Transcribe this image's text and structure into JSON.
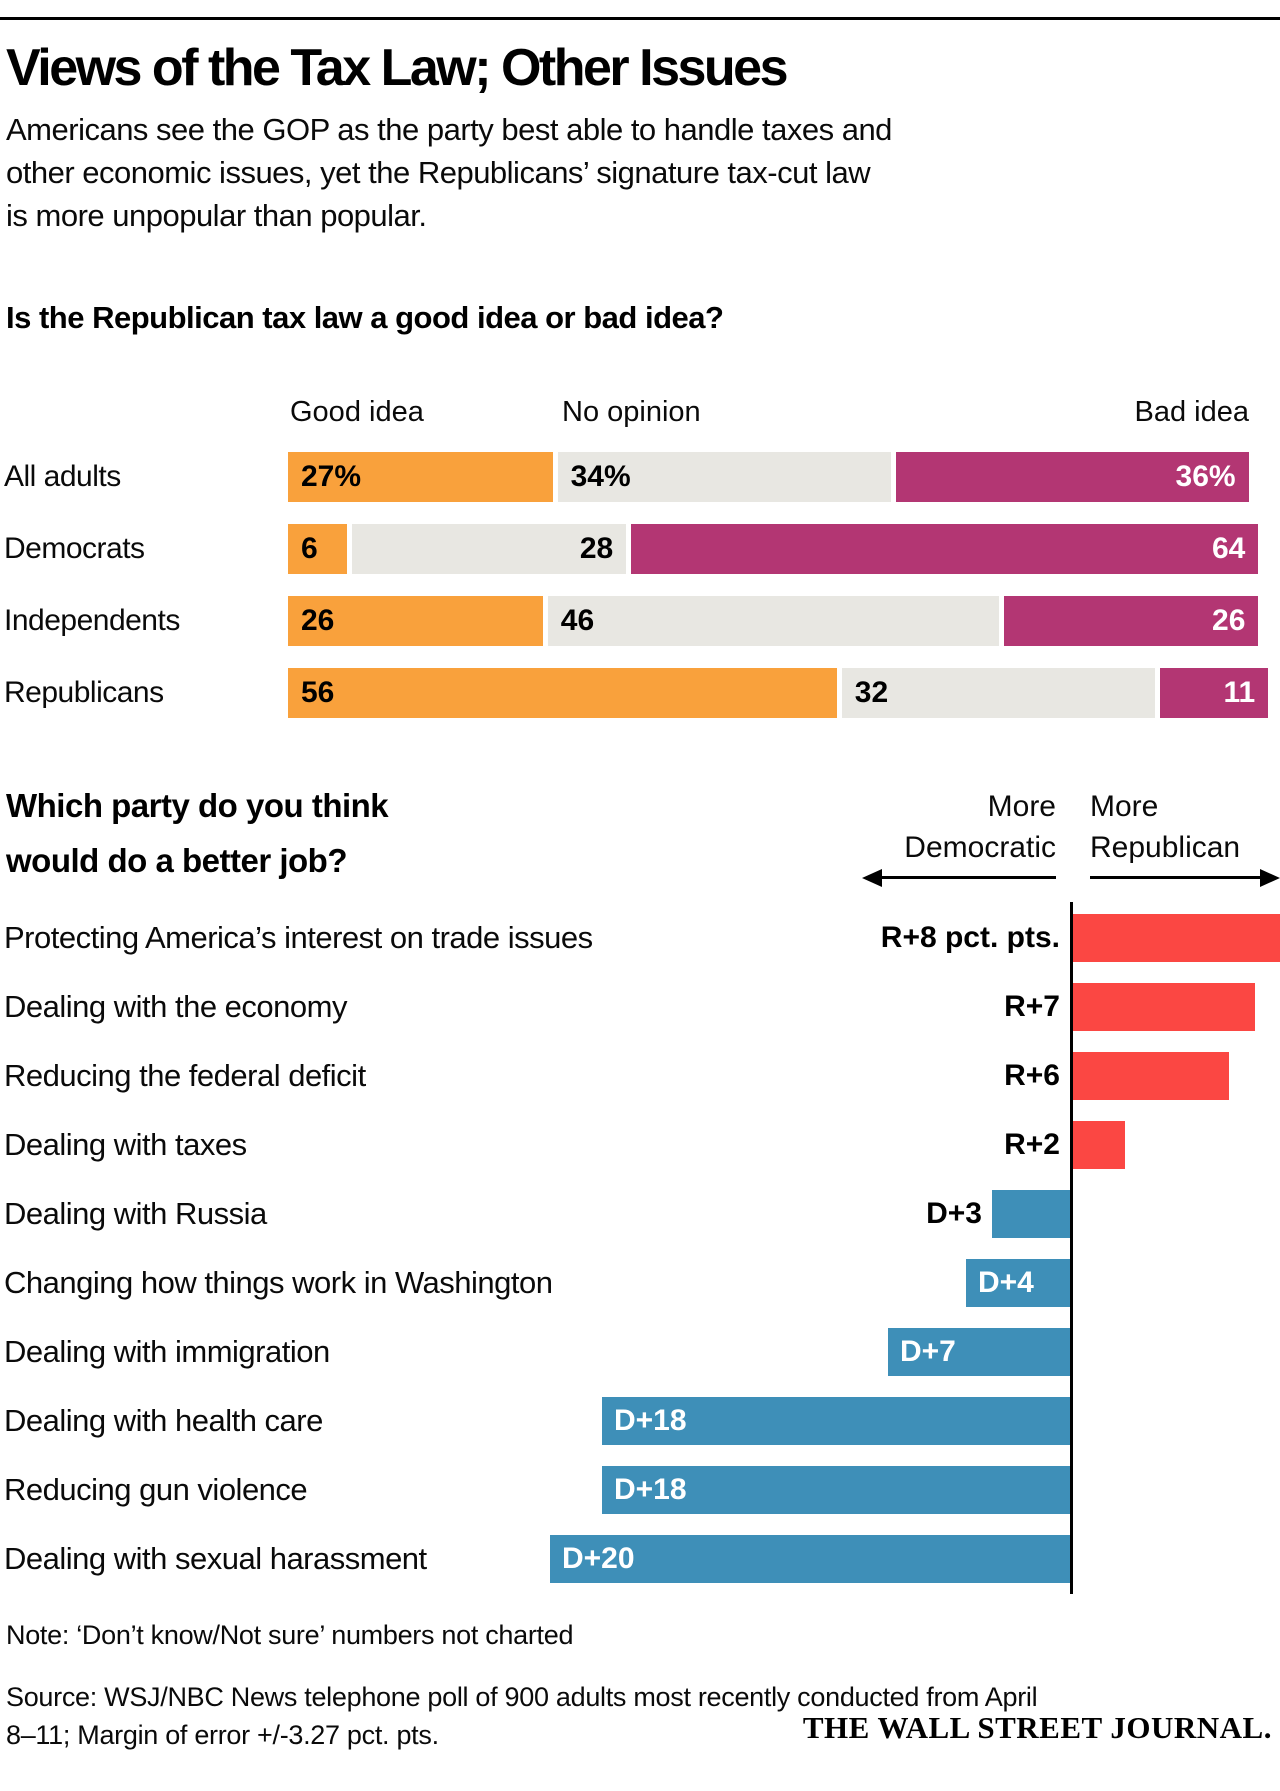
{
  "header": {
    "title": "Views of the Tax Law; Other Issues",
    "subtitle": "Americans see the GOP as the party best able to handle taxes and\nother economic issues, yet the Republicans’ signature tax-cut law\nis more unpopular than popular."
  },
  "colors": {
    "good_idea_orange": "#F9A13C",
    "no_opinion_gray": "#E8E7E2",
    "bad_idea_magenta": "#B33673",
    "republican_red": "#FB4743",
    "democratic_blue": "#3E8FB8",
    "axis_black": "#000000"
  },
  "chart_data": [
    {
      "type": "bar",
      "subtype": "horizontal-stacked",
      "title": "Is the Republican tax law a good idea or bad idea?",
      "legend": [
        "Good idea",
        "No opinion",
        "Bad idea"
      ],
      "legend_position": "top",
      "unit": "percent of respondents",
      "xlim": [
        0,
        100
      ],
      "categories": [
        "All adults",
        "Democrats",
        "Independents",
        "Republicans"
      ],
      "series": [
        {
          "name": "Good idea",
          "values": [
            27,
            6,
            26,
            56
          ]
        },
        {
          "name": "No opinion",
          "values": [
            34,
            28,
            46,
            32
          ]
        },
        {
          "name": "Bad idea",
          "values": [
            36,
            64,
            26,
            11
          ]
        }
      ],
      "value_labels": [
        [
          "27%",
          "34%",
          "36%"
        ],
        [
          "6",
          "28",
          "64"
        ],
        [
          "26",
          "46",
          "26"
        ],
        [
          "56",
          "32",
          "11"
        ]
      ],
      "neutral_label_align": [
        "left",
        "right",
        "left",
        "left"
      ]
    },
    {
      "type": "bar",
      "subtype": "horizontal-diverging",
      "title": "Which party do you think\nwould do a better job?",
      "axis_headers": {
        "left": "More\nDemocratic",
        "right": "More\nRepublican"
      },
      "unit": "percentage-point advantage",
      "rows": [
        {
          "label": "Protecting America’s interest on trade issues",
          "party": "R",
          "value": 8,
          "display": "R+8 pct. pts."
        },
        {
          "label": "Dealing with the economy",
          "party": "R",
          "value": 7,
          "display": "R+7"
        },
        {
          "label": "Reducing the federal deficit",
          "party": "R",
          "value": 6,
          "display": "R+6"
        },
        {
          "label": "Dealing with taxes",
          "party": "R",
          "value": 2,
          "display": "R+2"
        },
        {
          "label": "Dealing with Russia",
          "party": "D",
          "value": 3,
          "display": "D+3"
        },
        {
          "label": "Changing how things work in Washington",
          "party": "D",
          "value": 4,
          "display": "D+4"
        },
        {
          "label": "Dealing with immigration",
          "party": "D",
          "value": 7,
          "display": "D+7"
        },
        {
          "label": "Dealing with health care",
          "party": "D",
          "value": 18,
          "display": "D+18"
        },
        {
          "label": "Reducing gun violence",
          "party": "D",
          "value": 18,
          "display": "D+18"
        },
        {
          "label": "Dealing with sexual harassment",
          "party": "D",
          "value": 20,
          "display": "D+20"
        }
      ]
    }
  ],
  "footer": {
    "note": "Note: ‘Don’t know/Not sure’ numbers not charted",
    "source": "Source: WSJ/NBC News telephone poll of 900 adults most recently conducted from April\n8–11; Margin of error +/-3.27 pct. pts.",
    "logo": "THE WALL STREET JOURNAL."
  }
}
